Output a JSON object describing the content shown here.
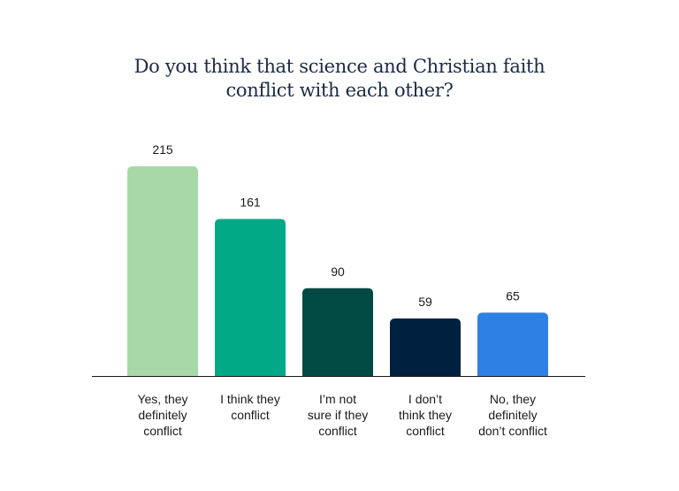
{
  "chart_data": {
    "type": "bar",
    "title_lines": [
      "Do you think that science and Christian faith",
      "conflict with each other?"
    ],
    "categories": [
      [
        "Yes, they",
        "definitely",
        "conflict"
      ],
      [
        "I think they",
        "conflict"
      ],
      [
        "I’m not",
        "sure if they",
        "conflict"
      ],
      [
        "I don’t",
        "think they",
        "conflict"
      ],
      [
        "No, they",
        "definitely",
        "don’t conflict"
      ]
    ],
    "values": [
      215,
      161,
      90,
      59,
      65
    ],
    "colors": [
      "#a8d8a8",
      "#00a886",
      "#004a43",
      "#002040",
      "#2f80e5"
    ],
    "xlabel": "",
    "ylabel": "",
    "ylim": [
      0,
      215
    ],
    "grid": false,
    "legend": "none"
  }
}
